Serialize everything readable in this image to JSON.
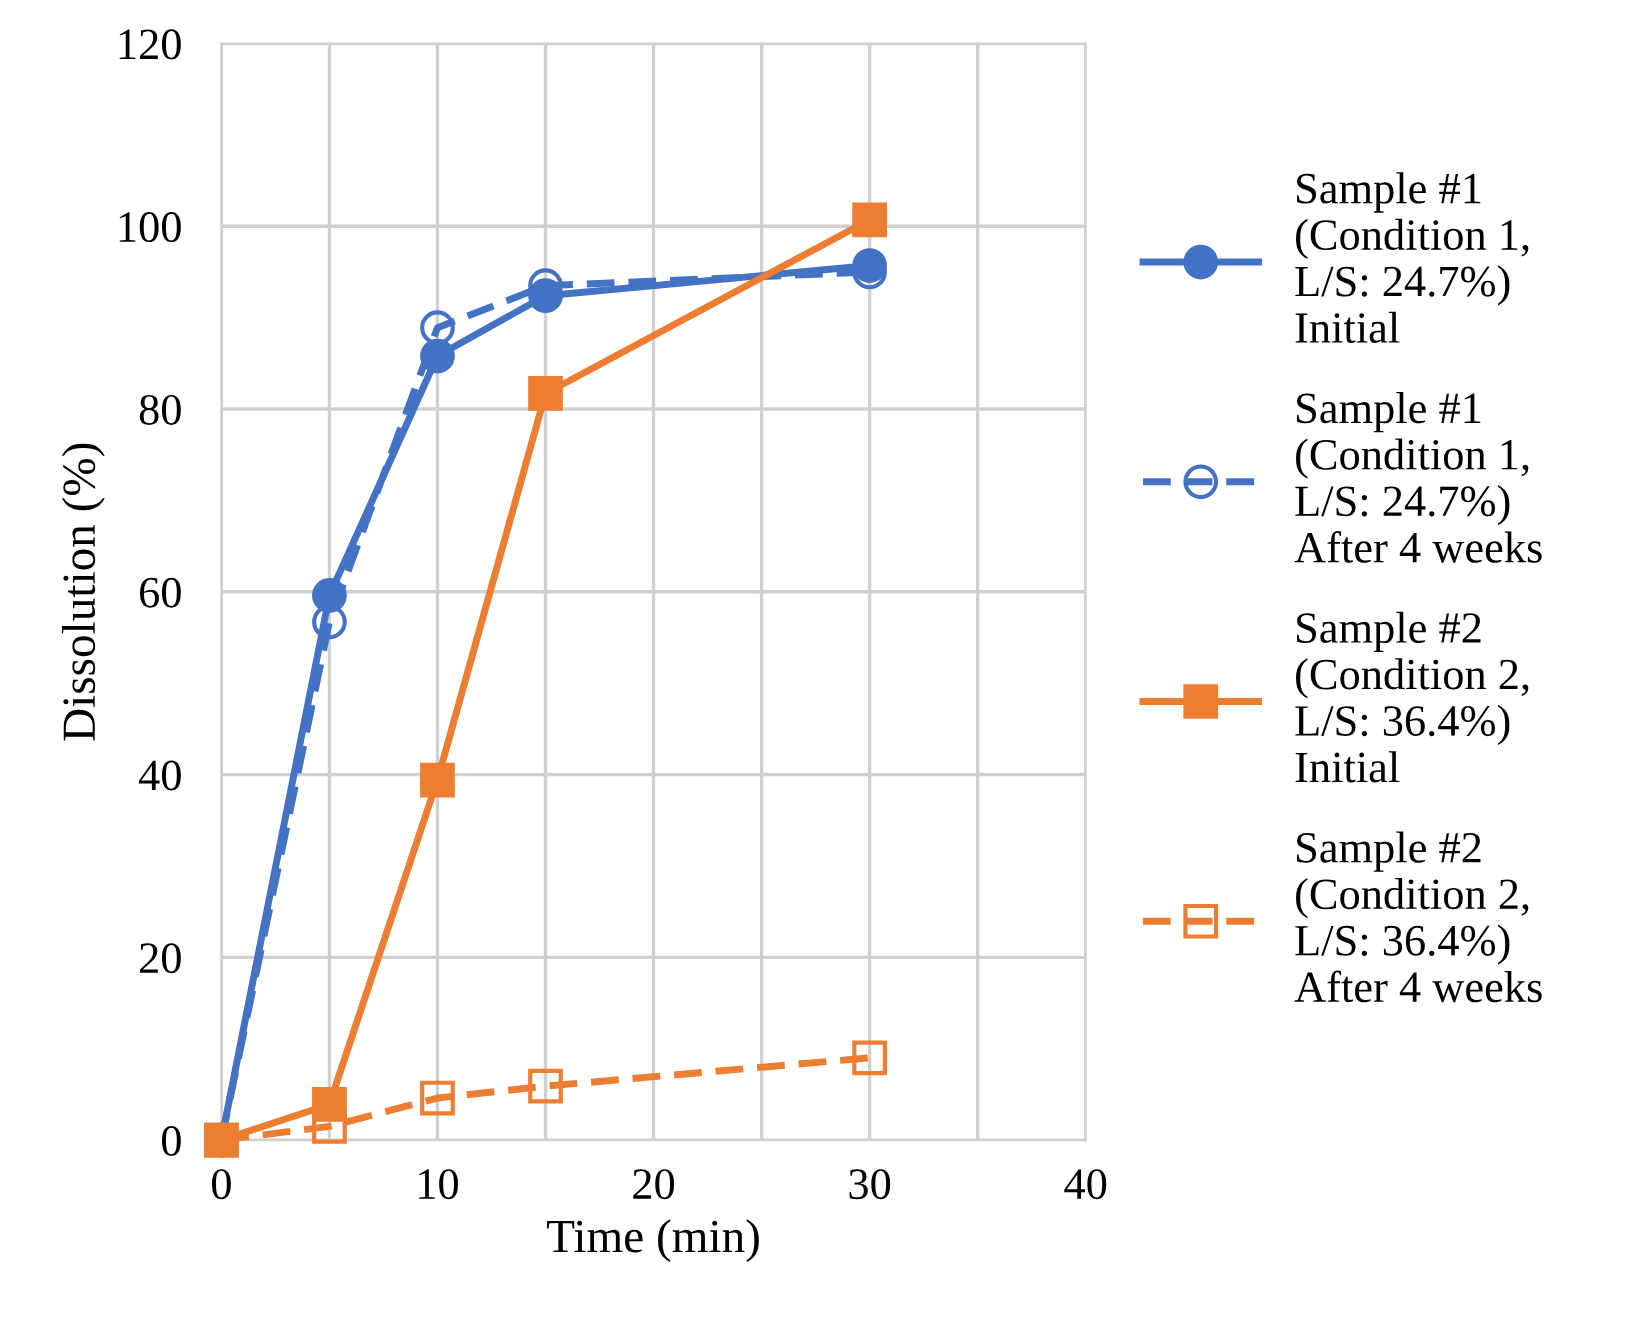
{
  "chart_data": {
    "type": "line",
    "xlabel": "Time (min)",
    "ylabel": "Dissolution (%)",
    "xlim": [
      0,
      40
    ],
    "ylim": [
      0,
      120
    ],
    "xticks": [
      0,
      {
        "value": 5,
        "label": null
      },
      10,
      {
        "value": 15,
        "label": null
      },
      20,
      {
        "value": 25,
        "label": null
      },
      30,
      {
        "value": 35,
        "label": null
      },
      40
    ],
    "yticks": [
      0,
      20,
      40,
      60,
      80,
      100,
      120
    ],
    "grid": true,
    "legend": "right",
    "series": [
      {
        "name": "Sample #1\n(Condition 1,\nL/S: 24.7%)\nInitial",
        "color": "#4472c4",
        "marker": "circle",
        "line_style": "solid",
        "x": [
          0,
          5,
          10,
          15,
          30
        ],
        "values": [
          0,
          59.6,
          85.8,
          92.4,
          95.7
        ]
      },
      {
        "name": "Sample #1\n(Condition 1,\nL/S: 24.7%)\nAfter 4 weeks",
        "color": "#4472c4",
        "marker": "circle",
        "line_style": "dashed",
        "x": [
          0,
          5,
          10,
          15,
          30
        ],
        "values": [
          0,
          56.7,
          88.9,
          93.5,
          95.0
        ]
      },
      {
        "name": "Sample #2\n(Condition 2,\nL/S: 36.4%)\nInitial",
        "color": "#ed7d31",
        "marker": "square",
        "line_style": "solid",
        "x": [
          0,
          5,
          10,
          15,
          30
        ],
        "values": [
          0,
          3.9,
          39.4,
          81.7,
          100.7
        ]
      },
      {
        "name": "Sample #2\n(Condition 2,\nL/S: 36.4%)\nAfter 4 weeks",
        "color": "#ed7d31",
        "marker": "square",
        "line_style": "dashed",
        "x": [
          0,
          5,
          10,
          15,
          30
        ],
        "values": [
          0,
          1.5,
          4.6,
          5.9,
          9.0
        ]
      }
    ]
  }
}
